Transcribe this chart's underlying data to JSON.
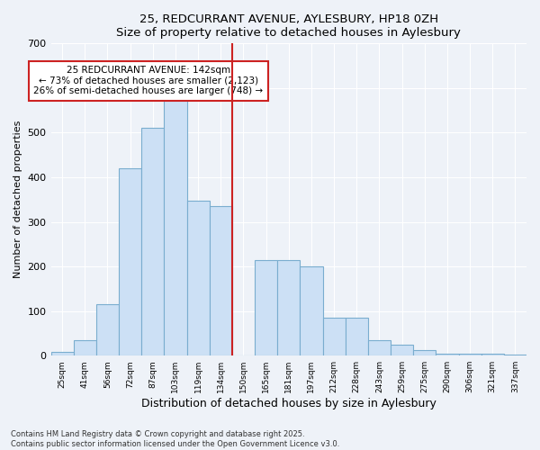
{
  "title": "25, REDCURRANT AVENUE, AYLESBURY, HP18 0ZH",
  "subtitle": "Size of property relative to detached houses in Aylesbury",
  "xlabel": "Distribution of detached houses by size in Aylesbury",
  "ylabel": "Number of detached properties",
  "categories": [
    "25sqm",
    "41sqm",
    "56sqm",
    "72sqm",
    "87sqm",
    "103sqm",
    "119sqm",
    "134sqm",
    "150sqm",
    "165sqm",
    "181sqm",
    "197sqm",
    "212sqm",
    "228sqm",
    "243sqm",
    "259sqm",
    "275sqm",
    "290sqm",
    "306sqm",
    "321sqm",
    "337sqm"
  ],
  "values": [
    8,
    35,
    115,
    420,
    510,
    580,
    348,
    335,
    0,
    215,
    215,
    200,
    85,
    85,
    35,
    25,
    12,
    5,
    5,
    5,
    3
  ],
  "bar_color": "#cce0f5",
  "bar_edge_color": "#7aadcf",
  "bar_width": 1.0,
  "vline_x": 8.0,
  "annotation_title": "25 REDCURRANT AVENUE: 142sqm",
  "annotation_line1": "← 73% of detached houses are smaller (2,123)",
  "annotation_line2": "26% of semi-detached houses are larger (748) →",
  "vline_color": "#cc2222",
  "annotation_box_color": "#ffffff",
  "annotation_box_edge": "#cc2222",
  "ylim": [
    0,
    700
  ],
  "yticks": [
    0,
    100,
    200,
    300,
    400,
    500,
    600,
    700
  ],
  "background_color": "#eef2f8",
  "grid_color": "#ffffff",
  "footer_line1": "Contains HM Land Registry data © Crown copyright and database right 2025.",
  "footer_line2": "Contains public sector information licensed under the Open Government Licence v3.0."
}
